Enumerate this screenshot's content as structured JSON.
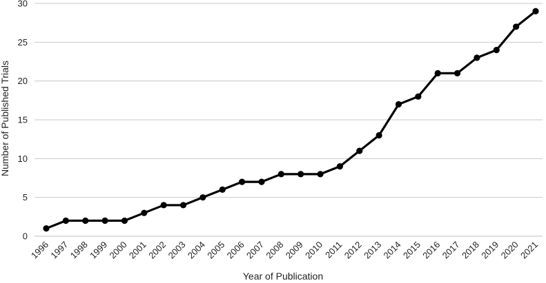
{
  "chart_data": {
    "type": "line",
    "title": "",
    "xlabel": "Year of Publication",
    "ylabel": "Number of Published Trials",
    "ylim": [
      0,
      30
    ],
    "yticks": [
      0,
      5,
      10,
      15,
      20,
      25,
      30
    ],
    "grid": true,
    "legend": "none",
    "line_color": "#000000",
    "grid_color": "#c8c8c8",
    "categories": [
      "1996",
      "1997",
      "1998",
      "1999",
      "2000",
      "2001",
      "2002",
      "2003",
      "2004",
      "2005",
      "2006",
      "2007",
      "2008",
      "2009",
      "2010",
      "2011",
      "2012",
      "2013",
      "2014",
      "2015",
      "2016",
      "2017",
      "2018",
      "2019",
      "2020",
      "2021"
    ],
    "series": [
      {
        "values": [
          1,
          2,
          2,
          2,
          2,
          3,
          4,
          4,
          5,
          6,
          7,
          7,
          8,
          8,
          8,
          9,
          11,
          13,
          17,
          18,
          21,
          21,
          23,
          24,
          27,
          29
        ]
      }
    ]
  }
}
